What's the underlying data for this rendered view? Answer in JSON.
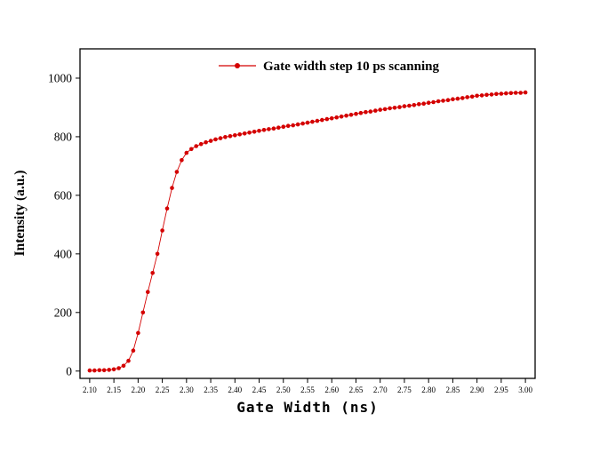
{
  "chart_data": {
    "type": "line",
    "title": "",
    "xlabel": "Gate Width (ns)",
    "ylabel": "Intensity (a.u.)",
    "legend": [
      "Gate width step 10 ps scanning"
    ],
    "legend_position": "top-center-inside",
    "series_color": "#d40000",
    "axis_color": "#000000",
    "grid": false,
    "xlim": [
      2.08,
      3.02
    ],
    "ylim": [
      -25,
      1100
    ],
    "x_ticks": [
      "2.10",
      "2.15",
      "2.20",
      "2.25",
      "2.30",
      "2.35",
      "2.40",
      "2.45",
      "2.50",
      "2.55",
      "2.60",
      "2.65",
      "2.70",
      "2.75",
      "2.80",
      "2.85",
      "2.90",
      "2.95",
      "3.00"
    ],
    "y_ticks": [
      "0",
      "200",
      "400",
      "600",
      "800",
      "1000"
    ],
    "x_start": 2.1,
    "x_step": 0.01,
    "values": [
      2,
      2,
      3,
      3,
      4,
      6,
      10,
      18,
      35,
      70,
      130,
      200,
      270,
      335,
      400,
      480,
      555,
      625,
      680,
      720,
      745,
      758,
      768,
      775,
      781,
      786,
      791,
      795,
      799,
      802,
      805,
      808,
      811,
      814,
      817,
      820,
      823,
      826,
      828,
      831,
      834,
      837,
      839,
      842,
      845,
      848,
      851,
      854,
      857,
      860,
      863,
      866,
      869,
      872,
      875,
      878,
      881,
      884,
      886,
      889,
      892,
      894,
      897,
      899,
      901,
      904,
      906,
      908,
      911,
      913,
      916,
      918,
      921,
      923,
      925,
      928,
      930,
      932,
      935,
      937,
      940,
      941,
      943,
      944,
      946,
      947,
      948,
      949,
      950,
      950,
      951
    ]
  }
}
